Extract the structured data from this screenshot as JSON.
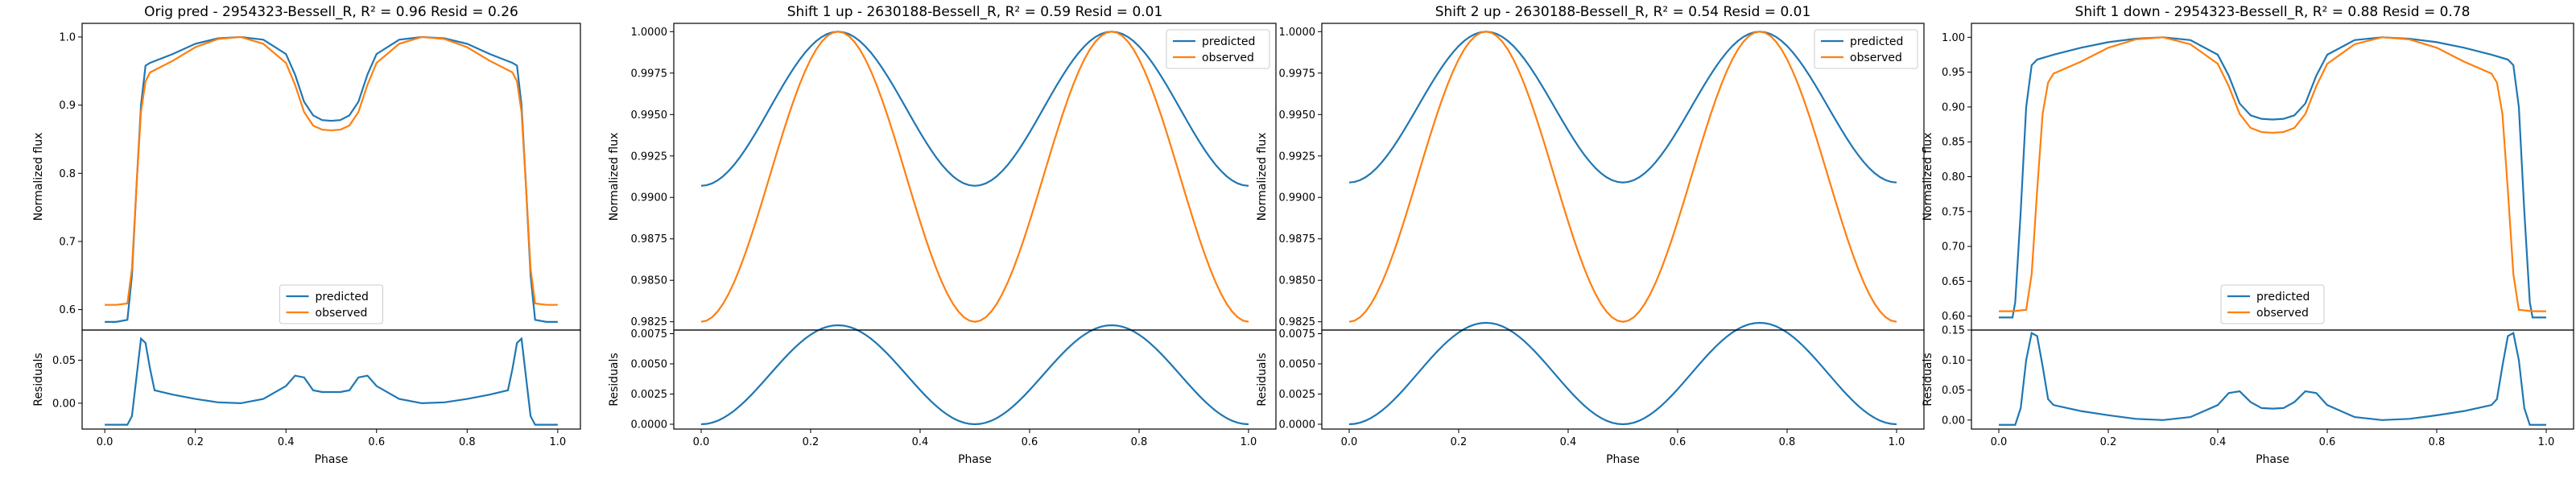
{
  "colors": {
    "predicted": "#1f77b4",
    "observed": "#ff7f0e"
  },
  "charts": [
    {
      "title": "Orig pred - 2954323-Bessell_R, R² = 0.96 Resid = 0.26",
      "ylabel": "Normalized flux",
      "resid_ylabel": "Residuals",
      "xlabel": "Phase",
      "legend": {
        "placement": "lower center",
        "items": [
          "predicted",
          "observed"
        ]
      }
    },
    {
      "title": "Shift 1 up - 2630188-Bessell_R, R² = 0.59 Resid = 0.01",
      "ylabel": "Normalized flux",
      "resid_ylabel": "Residuals",
      "xlabel": "Phase",
      "legend": {
        "placement": "upper right",
        "items": [
          "predicted",
          "observed"
        ]
      }
    },
    {
      "title": "Shift 2 up - 2630188-Bessell_R, R² = 0.54 Resid = 0.01",
      "ylabel": "Normalized flux",
      "resid_ylabel": "Residuals",
      "xlabel": "Phase",
      "legend": {
        "placement": "upper right",
        "items": [
          "predicted",
          "observed"
        ]
      }
    },
    {
      "title": "Shift 1 down - 2954323-Bessell_R, R² = 0.88 Resid = 0.78",
      "ylabel": "Normalized flux",
      "resid_ylabel": "Residuals",
      "xlabel": "Phase",
      "legend": {
        "placement": "lower center",
        "items": [
          "predicted",
          "observed"
        ]
      }
    }
  ],
  "chart_data": [
    {
      "type": "line",
      "title": "Orig pred - 2954323-Bessell_R, R² = 0.96 Resid = 0.26",
      "xlabel": "Phase",
      "ylabel": "Normalized flux",
      "xlim": [
        -0.05,
        1.05
      ],
      "ylim": [
        0.57,
        1.02
      ],
      "xticks": [
        0.0,
        0.2,
        0.4,
        0.6,
        0.8,
        1.0
      ],
      "yticks": [
        0.6,
        0.7,
        0.8,
        0.9,
        1.0
      ],
      "series": [
        {
          "name": "predicted",
          "x": [
            0.0,
            0.025,
            0.05,
            0.06,
            0.07,
            0.08,
            0.09,
            0.1,
            0.15,
            0.2,
            0.25,
            0.3,
            0.35,
            0.4,
            0.42,
            0.44,
            0.46,
            0.48,
            0.5,
            0.52,
            0.54,
            0.56,
            0.58,
            0.6,
            0.65,
            0.7,
            0.75,
            0.8,
            0.85,
            0.9,
            0.91,
            0.92,
            0.93,
            0.94,
            0.95,
            0.975,
            1.0
          ],
          "y": [
            0.582,
            0.582,
            0.585,
            0.65,
            0.78,
            0.9,
            0.958,
            0.962,
            0.975,
            0.99,
            0.998,
            1.0,
            0.996,
            0.975,
            0.945,
            0.905,
            0.885,
            0.878,
            0.877,
            0.878,
            0.885,
            0.905,
            0.945,
            0.975,
            0.996,
            1.0,
            0.998,
            0.99,
            0.975,
            0.962,
            0.958,
            0.9,
            0.78,
            0.65,
            0.585,
            0.582,
            0.582
          ]
        },
        {
          "name": "observed",
          "x": [
            0.0,
            0.025,
            0.05,
            0.06,
            0.07,
            0.08,
            0.09,
            0.1,
            0.15,
            0.2,
            0.25,
            0.3,
            0.35,
            0.4,
            0.42,
            0.44,
            0.46,
            0.48,
            0.5,
            0.52,
            0.54,
            0.56,
            0.58,
            0.6,
            0.65,
            0.7,
            0.75,
            0.8,
            0.85,
            0.9,
            0.91,
            0.92,
            0.93,
            0.94,
            0.95,
            0.975,
            1.0
          ],
          "y": [
            0.607,
            0.607,
            0.609,
            0.66,
            0.78,
            0.89,
            0.935,
            0.948,
            0.965,
            0.985,
            0.997,
            1.0,
            0.99,
            0.962,
            0.93,
            0.89,
            0.87,
            0.864,
            0.863,
            0.864,
            0.87,
            0.89,
            0.93,
            0.962,
            0.99,
            1.0,
            0.997,
            0.985,
            0.965,
            0.948,
            0.935,
            0.89,
            0.78,
            0.66,
            0.609,
            0.607,
            0.607
          ]
        }
      ],
      "residuals": {
        "ylim": [
          -0.03,
          0.085
        ],
        "yticks": [
          0.0,
          0.05
        ],
        "x": [
          0.0,
          0.05,
          0.06,
          0.07,
          0.08,
          0.09,
          0.1,
          0.11,
          0.15,
          0.2,
          0.25,
          0.3,
          0.35,
          0.4,
          0.42,
          0.44,
          0.46,
          0.48,
          0.5,
          0.52,
          0.54,
          0.56,
          0.58,
          0.6,
          0.65,
          0.7,
          0.75,
          0.8,
          0.85,
          0.89,
          0.9,
          0.91,
          0.92,
          0.93,
          0.94,
          0.95,
          1.0
        ],
        "y": [
          -0.025,
          -0.025,
          -0.015,
          0.03,
          0.075,
          0.07,
          0.04,
          0.015,
          0.01,
          0.005,
          0.001,
          0.0,
          0.005,
          0.02,
          0.032,
          0.03,
          0.015,
          0.013,
          0.013,
          0.013,
          0.015,
          0.03,
          0.032,
          0.02,
          0.005,
          0.0,
          0.001,
          0.005,
          0.01,
          0.015,
          0.04,
          0.07,
          0.075,
          0.03,
          -0.015,
          -0.025,
          -0.025
        ]
      }
    },
    {
      "type": "line",
      "title": "Shift 1 up - 2630188-Bessell_R, R² = 0.59 Resid = 0.01",
      "xlabel": "Phase",
      "ylabel": "Normalized flux",
      "xlim": [
        -0.05,
        1.05
      ],
      "ylim": [
        0.982,
        1.0005
      ],
      "xticks": [
        0.0,
        0.2,
        0.4,
        0.6,
        0.8,
        1.0
      ],
      "yticks": [
        0.9825,
        0.985,
        0.9875,
        0.99,
        0.9925,
        0.995,
        0.9975,
        1.0
      ],
      "series": [
        {
          "name": "predicted",
          "model": {
            "kind": "cos",
            "k1": 0.99535,
            "k2": 0.00465
          }
        },
        {
          "name": "observed",
          "model": {
            "kind": "cos",
            "k1": 0.99125,
            "k2": 0.00875
          }
        }
      ],
      "residuals": {
        "ylim": [
          -0.0004,
          0.0078
        ],
        "yticks": [
          0.0,
          0.0025,
          0.005,
          0.0075
        ],
        "model": {
          "kind": "cos",
          "k1": 0.0041,
          "k2": 0.0041
        }
      }
    },
    {
      "type": "line",
      "title": "Shift 2 up - 2630188-Bessell_R, R² = 0.54 Resid = 0.01",
      "xlabel": "Phase",
      "ylabel": "Normalized flux",
      "xlim": [
        -0.05,
        1.05
      ],
      "ylim": [
        0.982,
        1.0005
      ],
      "xticks": [
        0.0,
        0.2,
        0.4,
        0.6,
        0.8,
        1.0
      ],
      "yticks": [
        0.9825,
        0.985,
        0.9875,
        0.99,
        0.9925,
        0.995,
        0.9975,
        1.0
      ],
      "series": [
        {
          "name": "predicted",
          "model": {
            "kind": "cos",
            "k1": 0.99545,
            "k2": 0.00455
          }
        },
        {
          "name": "observed",
          "model": {
            "kind": "cos",
            "k1": 0.99125,
            "k2": 0.00875
          }
        }
      ],
      "residuals": {
        "ylim": [
          -0.0004,
          0.0078
        ],
        "yticks": [
          0.0,
          0.0025,
          0.005,
          0.0075
        ],
        "model": {
          "kind": "cos",
          "k1": 0.0042,
          "k2": 0.0042
        }
      }
    },
    {
      "type": "line",
      "title": "Shift 1 down - 2954323-Bessell_R, R² = 0.88 Resid = 0.78",
      "xlabel": "Phase",
      "ylabel": "Normalized flux",
      "xlim": [
        -0.05,
        1.05
      ],
      "ylim": [
        0.58,
        1.02
      ],
      "xticks": [
        0.0,
        0.2,
        0.4,
        0.6,
        0.8,
        1.0
      ],
      "yticks": [
        0.6,
        0.65,
        0.7,
        0.75,
        0.8,
        0.85,
        0.9,
        0.95,
        1.0
      ],
      "series": [
        {
          "name": "predicted",
          "x": [
            0.0,
            0.025,
            0.03,
            0.04,
            0.05,
            0.06,
            0.07,
            0.1,
            0.15,
            0.2,
            0.25,
            0.3,
            0.35,
            0.4,
            0.42,
            0.44,
            0.46,
            0.48,
            0.5,
            0.52,
            0.54,
            0.56,
            0.58,
            0.6,
            0.65,
            0.7,
            0.75,
            0.8,
            0.85,
            0.9,
            0.93,
            0.94,
            0.95,
            0.96,
            0.97,
            0.975,
            1.0
          ],
          "y": [
            0.598,
            0.598,
            0.62,
            0.75,
            0.9,
            0.96,
            0.968,
            0.975,
            0.985,
            0.993,
            0.998,
            1.0,
            0.996,
            0.975,
            0.945,
            0.905,
            0.888,
            0.883,
            0.882,
            0.883,
            0.888,
            0.905,
            0.945,
            0.975,
            0.996,
            1.0,
            0.998,
            0.993,
            0.985,
            0.975,
            0.968,
            0.96,
            0.9,
            0.75,
            0.62,
            0.598,
            0.598
          ]
        },
        {
          "name": "observed",
          "x": [
            0.0,
            0.025,
            0.05,
            0.06,
            0.07,
            0.08,
            0.09,
            0.1,
            0.15,
            0.2,
            0.25,
            0.3,
            0.35,
            0.4,
            0.42,
            0.44,
            0.46,
            0.48,
            0.5,
            0.52,
            0.54,
            0.56,
            0.58,
            0.6,
            0.65,
            0.7,
            0.75,
            0.8,
            0.85,
            0.9,
            0.91,
            0.92,
            0.93,
            0.94,
            0.95,
            0.975,
            1.0
          ],
          "y": [
            0.607,
            0.607,
            0.609,
            0.66,
            0.78,
            0.89,
            0.935,
            0.948,
            0.965,
            0.985,
            0.997,
            1.0,
            0.99,
            0.962,
            0.93,
            0.89,
            0.87,
            0.864,
            0.863,
            0.864,
            0.87,
            0.89,
            0.93,
            0.962,
            0.99,
            1.0,
            0.997,
            0.985,
            0.965,
            0.948,
            0.935,
            0.89,
            0.78,
            0.66,
            0.609,
            0.607,
            0.607
          ]
        }
      ],
      "residuals": {
        "ylim": [
          -0.015,
          0.15
        ],
        "yticks": [
          0.0,
          0.05,
          0.1,
          0.15
        ],
        "x": [
          0.0,
          0.03,
          0.04,
          0.05,
          0.06,
          0.07,
          0.08,
          0.09,
          0.1,
          0.15,
          0.2,
          0.25,
          0.3,
          0.35,
          0.4,
          0.42,
          0.44,
          0.46,
          0.48,
          0.5,
          0.52,
          0.54,
          0.56,
          0.58,
          0.6,
          0.65,
          0.7,
          0.75,
          0.8,
          0.85,
          0.9,
          0.91,
          0.92,
          0.93,
          0.94,
          0.95,
          0.96,
          0.97,
          1.0
        ],
        "y": [
          -0.008,
          -0.008,
          0.02,
          0.1,
          0.145,
          0.14,
          0.09,
          0.035,
          0.025,
          0.015,
          0.008,
          0.002,
          0.0,
          0.005,
          0.025,
          0.045,
          0.048,
          0.03,
          0.02,
          0.019,
          0.02,
          0.03,
          0.048,
          0.045,
          0.025,
          0.005,
          0.0,
          0.002,
          0.008,
          0.015,
          0.025,
          0.035,
          0.09,
          0.14,
          0.145,
          0.1,
          0.02,
          -0.008,
          -0.008
        ]
      }
    }
  ]
}
